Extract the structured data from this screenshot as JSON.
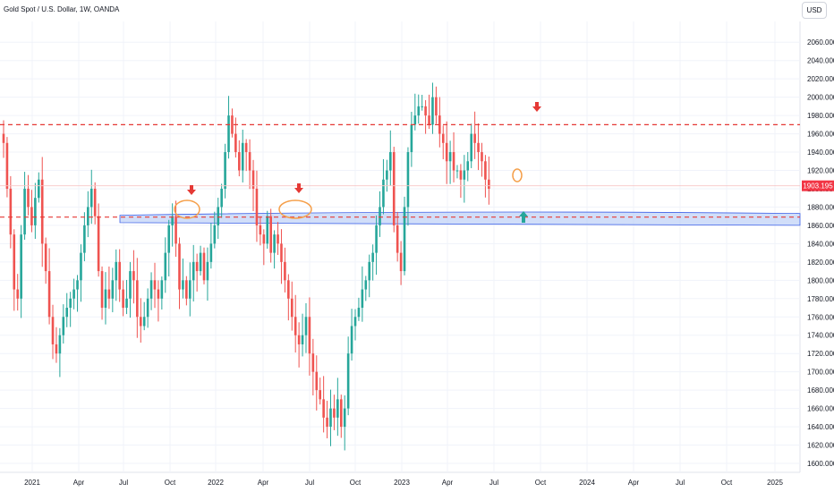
{
  "header": {
    "title": "Gold Spot / U.S. Dollar, 1W, OANDA",
    "currency": "USD"
  },
  "chart_data": {
    "type": "candlestick",
    "title": "Gold Spot / U.S. Dollar, 1W, OANDA",
    "xlabel": "",
    "ylabel": "",
    "ylim": [
      1600,
      2070
    ],
    "grid": true,
    "colors": {
      "up": "#26a69a",
      "down": "#ef5350",
      "level": "#e53935",
      "zone": "#b3c8f5",
      "zone_border": "#3f62e8",
      "marker": "#f59f4a"
    },
    "y_ticks": [
      "2060.000",
      "2040.000",
      "2020.000",
      "2000.000",
      "1980.000",
      "1960.000",
      "1940.000",
      "1920.000",
      "1900.000",
      "1880.000",
      "1860.000",
      "1840.000",
      "1820.000",
      "1800.000",
      "1780.000",
      "1760.000",
      "1740.000",
      "1720.000",
      "1700.000",
      "1680.000",
      "1660.000",
      "1640.000",
      "1620.000",
      "1600.000"
    ],
    "x_ticks": [
      "2021",
      "Apr",
      "Jul",
      "Oct",
      "2022",
      "Apr",
      "Jul",
      "Oct",
      "2023",
      "Apr",
      "Jul",
      "Oct",
      "2024",
      "Apr",
      "Jul",
      "Oct",
      "2025"
    ],
    "last_price": "1903.195",
    "resistance_level": 1970,
    "support_level": 1869,
    "support_zone": [
      1862,
      1872
    ],
    "closes": [
      1950,
      1900,
      1850,
      1790,
      1780,
      1850,
      1900,
      1880,
      1860,
      1890,
      1910,
      1840,
      1810,
      1760,
      1730,
      1720,
      1740,
      1760,
      1770,
      1780,
      1790,
      1800,
      1830,
      1860,
      1880,
      1900,
      1870,
      1810,
      1770,
      1790,
      1780,
      1800,
      1820,
      1790,
      1770,
      1780,
      1810,
      1800,
      1760,
      1750,
      1760,
      1780,
      1800,
      1790,
      1780,
      1800,
      1830,
      1860,
      1870,
      1840,
      1790,
      1800,
      1780,
      1800,
      1820,
      1810,
      1830,
      1800,
      1820,
      1840,
      1860,
      1880,
      1900,
      1940,
      1980,
      1960,
      1940,
      1920,
      1950,
      1940,
      1920,
      1900,
      1860,
      1850,
      1840,
      1870,
      1830,
      1850,
      1840,
      1820,
      1800,
      1780,
      1760,
      1740,
      1730,
      1740,
      1760,
      1720,
      1700,
      1680,
      1670,
      1650,
      1640,
      1660,
      1650,
      1670,
      1640,
      1660,
      1720,
      1750,
      1760,
      1770,
      1790,
      1800,
      1820,
      1830,
      1860,
      1880,
      1910,
      1920,
      1940,
      1860,
      1830,
      1810,
      1880,
      1940,
      1970,
      1980,
      1990,
      1990,
      1980,
      1970,
      2000,
      1980,
      1960,
      1950,
      1930,
      1940,
      1920,
      1920,
      1910,
      1920,
      1930,
      1960,
      1950,
      1940,
      1930,
      1910,
      1900
    ]
  }
}
